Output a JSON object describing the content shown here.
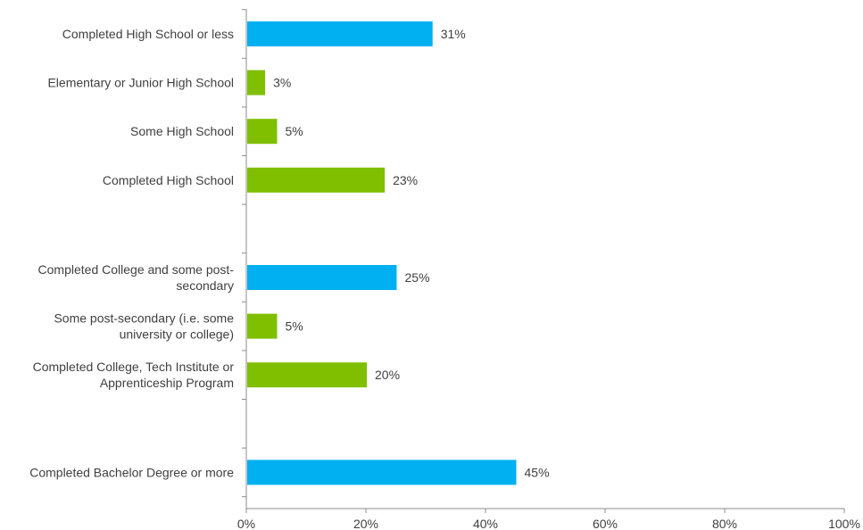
{
  "chart_data": {
    "type": "bar",
    "orientation": "horizontal",
    "categories": [
      "Completed High School or less",
      "Elementary or Junior High School",
      "Some High School",
      "Completed High School",
      "",
      "Completed College and some post-secondary",
      "Some post-secondary (i.e. some university or college)",
      "Completed College, Tech Institute or Apprenticeship Program",
      "",
      "Completed Bachelor Degree or more"
    ],
    "category_lines": [
      [
        "Completed High School or less"
      ],
      [
        "Elementary or Junior High School"
      ],
      [
        "Some High School"
      ],
      [
        "Completed High School"
      ],
      [],
      [
        "Completed College and some post-",
        "secondary"
      ],
      [
        "Some post-secondary (i.e. some",
        "university or college)"
      ],
      [
        "Completed College, Tech Institute or",
        "Apprenticeship Program"
      ],
      [],
      [
        "Completed Bachelor Degree or more"
      ]
    ],
    "values": [
      31,
      3,
      5,
      23,
      null,
      25,
      5,
      20,
      null,
      45
    ],
    "value_labels": [
      "31%",
      "3%",
      "5%",
      "23%",
      "",
      "25%",
      "5%",
      "20%",
      "",
      "45%"
    ],
    "bar_roles": [
      "summary",
      "detail",
      "detail",
      "detail",
      "gap",
      "summary",
      "detail",
      "detail",
      "gap",
      "summary"
    ],
    "colors": {
      "summary": "#00b0f0",
      "detail": "#7fbf00",
      "axis": "#8c8c8c",
      "text": "#404040"
    },
    "xlim": [
      0,
      100
    ],
    "x_ticks": [
      0,
      20,
      40,
      60,
      80,
      100
    ],
    "x_tick_labels": [
      "0%",
      "20%",
      "40%",
      "60%",
      "80%",
      "100%"
    ],
    "title": "",
    "xlabel": "",
    "ylabel": "",
    "grid": false,
    "legend": "none"
  }
}
